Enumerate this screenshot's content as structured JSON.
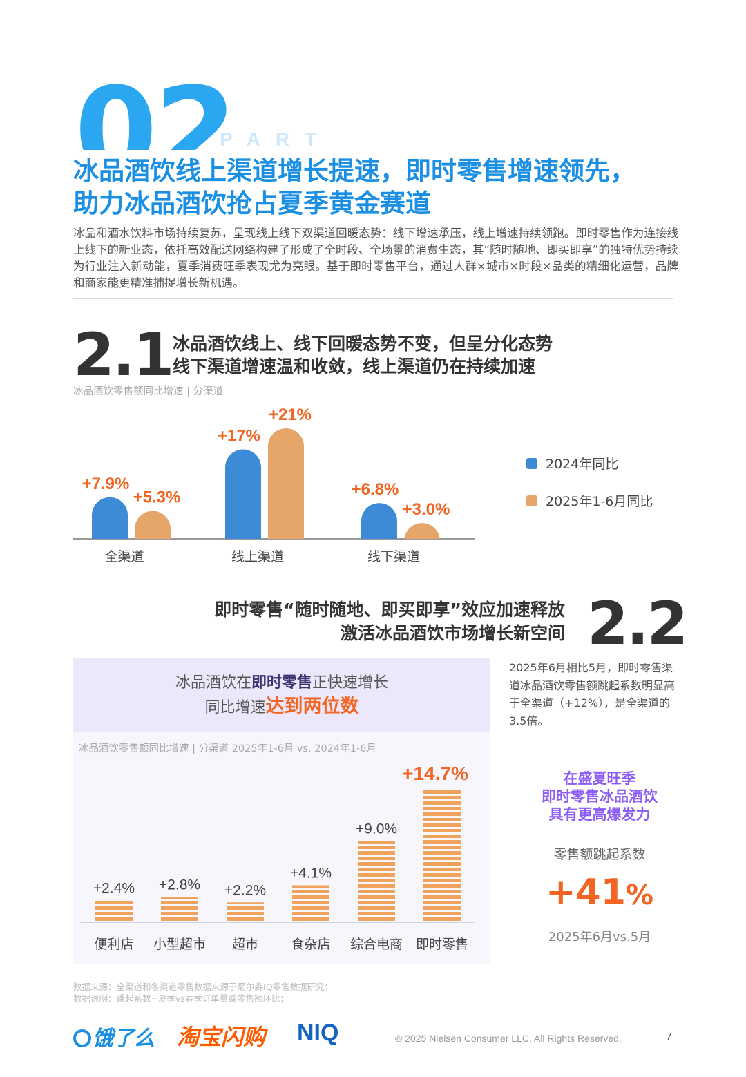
{
  "header": {
    "part_number": "02",
    "part_label": "PART",
    "title_line1": "冰品酒饮线上渠道增长提速，即时零售增速领先，",
    "title_line2": "助力冰品酒饮抢占夏季黄金赛道",
    "intro": "冰品和酒水饮料市场持续复苏，呈现线上线下双渠道回暖态势：线下增速承压，线上增速持续领跑。即时零售作为连接线上线下的新业态，依托高效配送网络构建了形成了全时段、全场景的消费生态，其“随时随地、即买即享”的独特优势持续为行业注入新动能，夏季消费旺季表现尤为亮眼。基于即时零售平台，通过人群×城市×时段×品类的精细化运营，品牌和商家能更精准捕捉增长新机遇。"
  },
  "section21": {
    "number": "2.1",
    "title_line1": "冰品酒饮线上、线下回暖态势不变，但呈分化态势",
    "title_line2": "线下渠道增速温和收敛，线上渠道仍在持续加速",
    "subtitle": "冰品酒饮零售额同比增速 | 分渠道"
  },
  "section22": {
    "number": "2.2",
    "title_line1": "即时零售“随时随地、即买即享”效应加速释放",
    "title_line2": "激活冰品酒饮市场增长新空间",
    "panel_title_pre": "冰品酒饮在",
    "panel_title_bold": "即时零售",
    "panel_title_post": "正快速增长",
    "panel_title2_pre": "同比增速",
    "panel_title2_bold": "达到两位数",
    "chart_subtitle": "冰品酒饮零售额同比增速 | 分渠道 2025年1-6月 vs. 2024年1-6月",
    "side_text": "2025年6月相比5月，即时零售渠道冰品酒饮零售额跳起系数明显高于全渠道（+12%），是全渠道的3.5倍。",
    "highlight_line1": "在盛夏旺季",
    "highlight_line2": "即时零售冰品酒饮",
    "highlight_line3": "具有更高爆发力",
    "jump_label": "零售额跳起系数",
    "jump_value": "+41",
    "jump_unit": "%",
    "jump_caption": "2025年6月vs.5月"
  },
  "chart_data": [
    {
      "type": "bar",
      "categories": [
        "全渠道",
        "线上渠道",
        "线下渠道"
      ],
      "series": [
        {
          "name": "2024年同比",
          "values": [
            7.9,
            17,
            6.8
          ],
          "labels": [
            "+7.9%",
            "+17%",
            "+6.8%"
          ],
          "color": "#3d8ad6"
        },
        {
          "name": "2025年1-6月同比",
          "values": [
            5.3,
            21,
            3.0
          ],
          "labels": [
            "+5.3%",
            "+21%",
            "+3.0%"
          ],
          "color": "#e6a66a"
        }
      ],
      "ylim": [
        0,
        21
      ],
      "label_color": "#f26522",
      "legend_position": "right"
    },
    {
      "type": "bar",
      "categories": [
        "便利店",
        "小型超市",
        "超市",
        "食杂店",
        "综合电商",
        "即时零售"
      ],
      "values": [
        2.4,
        2.8,
        2.2,
        4.1,
        9.0,
        14.7
      ],
      "labels": [
        "+2.4%",
        "+2.8%",
        "+2.2%",
        "+4.1%",
        "+9.0%",
        "+14.7%"
      ],
      "color": "#efa35d",
      "highlight_label_color": "#f26522",
      "ylim": [
        0,
        14.7
      ]
    }
  ],
  "footer": {
    "note1": "数据来源：全渠道和各渠道零售数据来源于尼尔森IQ零售数据研究；",
    "note2": "数据说明：跳起系数=夏季vs春季订单量或零售额环比；",
    "logo1": "饿了么",
    "logo2": "淘宝闪购",
    "logo3": "NIQ",
    "copyright": "© 2025 Nielsen Consumer LLC. All Rights Reserved.",
    "page": "7"
  }
}
